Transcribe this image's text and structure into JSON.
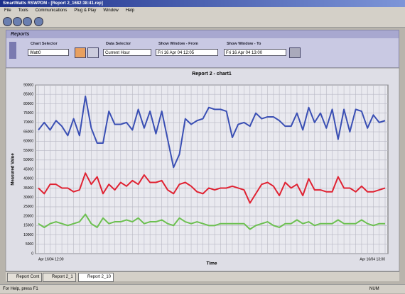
{
  "window": {
    "title": "SmartWatts RSWPDM - [Report 2_1682:38:41.rep]",
    "menu": [
      "File",
      "Tools",
      "Communications",
      "Plug & Play",
      "Window",
      "Help"
    ],
    "panel": {
      "title": "Reports",
      "chart_selector_label": "Chart Selector",
      "chart_selector_value": "Watt0",
      "data_selector_label": "Data Selector",
      "data_selector_value": "Current Hour",
      "from_label": "Show Window - From",
      "from_value": "Fri 16 Apr 04 12:05",
      "to_label": "Show Window - To",
      "to_value": "Fri 16 Apr 04 13:00"
    },
    "tabs": [
      "Report Cont",
      "Report 2_1",
      "Report 2_10"
    ],
    "status": {
      "left": "For Help, press F1",
      "right": "NUM"
    }
  },
  "chart_data": {
    "type": "line",
    "title": "Report 2 - chart1",
    "y_label": "Measured Value",
    "x_label": "Time",
    "categories": [
      "Apr 16/04 12:00",
      null,
      null,
      null,
      null,
      null,
      null,
      null,
      null,
      null,
      null,
      null,
      null,
      null,
      null,
      null,
      null,
      null,
      null,
      null,
      null,
      null,
      null,
      null,
      null,
      null,
      null,
      null,
      null,
      null,
      null,
      null,
      null,
      null,
      null,
      null,
      null,
      null,
      null,
      null,
      null,
      null,
      null,
      null,
      null,
      null,
      null,
      null,
      null,
      null,
      null,
      null,
      null,
      null,
      null,
      null,
      null,
      null,
      null,
      "Apr 16/04 13:00"
    ],
    "ylim": [
      0,
      90000
    ],
    "yticks": [
      0,
      5000,
      10000,
      15000,
      20000,
      25000,
      30000,
      35000,
      40000,
      45000,
      50000,
      55000,
      60000,
      65000,
      70000,
      75000,
      80000,
      85000,
      90000
    ],
    "grid": true,
    "series": [
      {
        "color": "#3a4fb4",
        "values": [
          66000,
          70000,
          66000,
          71000,
          68000,
          63000,
          72000,
          63000,
          84000,
          67000,
          59000,
          59000,
          76000,
          69000,
          69000,
          70000,
          66000,
          77000,
          67000,
          76000,
          64000,
          76000,
          61000,
          46000,
          53000,
          72000,
          69000,
          71000,
          72000,
          78000,
          77000,
          77000,
          76000,
          62000,
          69000,
          70000,
          68000,
          75000,
          72000,
          73000,
          73000,
          71000,
          68000,
          68000,
          75000,
          66000,
          78000,
          70000,
          75000,
          67000,
          77000,
          61000,
          77000,
          65000,
          77000,
          76000,
          67000,
          74000,
          70000,
          71000
        ]
      },
      {
        "color": "#e02232",
        "values": [
          35000,
          32000,
          37000,
          37000,
          35000,
          35000,
          33000,
          34000,
          43000,
          37000,
          41000,
          32000,
          37000,
          34000,
          38000,
          36000,
          39000,
          37000,
          42000,
          38000,
          38000,
          39000,
          34000,
          32000,
          37000,
          38000,
          36000,
          33000,
          32000,
          35000,
          34000,
          35000,
          35000,
          36000,
          35000,
          34000,
          27000,
          32000,
          37000,
          38000,
          36000,
          31000,
          38000,
          35000,
          37000,
          31000,
          40000,
          34000,
          34000,
          33000,
          33000,
          41000,
          35000,
          35000,
          33000,
          36000,
          33000,
          33000,
          34000,
          35000
        ]
      },
      {
        "color": "#6cc050",
        "values": [
          16000,
          14000,
          16000,
          17000,
          16000,
          15000,
          16000,
          17000,
          21000,
          16000,
          14000,
          19000,
          16000,
          17000,
          17000,
          18000,
          17000,
          19000,
          16000,
          17000,
          17000,
          18000,
          16000,
          15000,
          19000,
          17000,
          16000,
          17000,
          16000,
          15000,
          15000,
          16000,
          16000,
          16000,
          16000,
          16000,
          13000,
          15000,
          16000,
          17000,
          15000,
          14000,
          16000,
          16000,
          18000,
          16000,
          17000,
          15000,
          16000,
          16000,
          16000,
          18000,
          16000,
          16000,
          16000,
          18000,
          16000,
          15000,
          16000,
          16000
        ]
      }
    ]
  }
}
